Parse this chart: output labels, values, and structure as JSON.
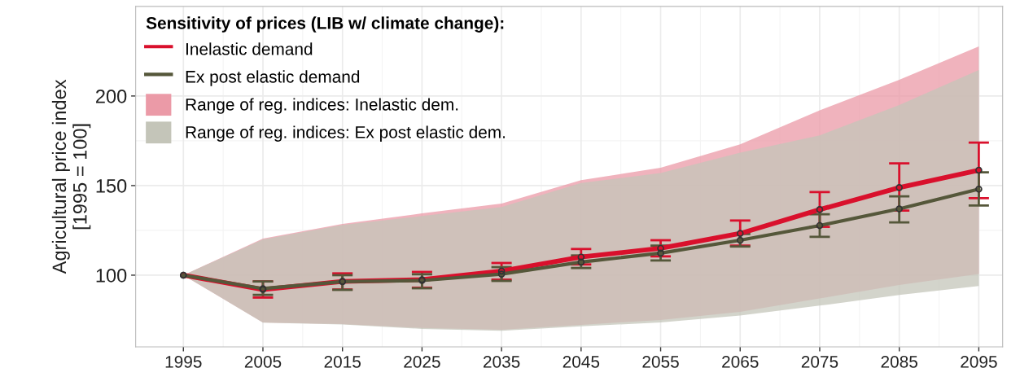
{
  "chart_data": {
    "type": "line",
    "ylabel": "Agricultural price index\n[1995 = 100]",
    "legend_title": "Sensitivity of prices (LIB w/ climate change):",
    "x": [
      1995,
      2005,
      2015,
      2025,
      2035,
      2045,
      2055,
      2065,
      2075,
      2085,
      2095
    ],
    "xlim": [
      1989,
      2098
    ],
    "xticks": [
      1995,
      2005,
      2015,
      2025,
      2035,
      2045,
      2055,
      2065,
      2075,
      2085,
      2095
    ],
    "ylim": [
      60,
      250
    ],
    "yticks": [
      100,
      150,
      200
    ],
    "grid": true,
    "legend": "top left",
    "line_style": "solid",
    "series": [
      {
        "name": "Inelastic demand",
        "marker": "circle",
        "color": "#d9102c",
        "values": [
          100,
          92,
          96.5,
          97.5,
          102.3,
          110.1,
          115,
          123.3,
          136.6,
          148.9,
          158.6
        ],
        "errors": [
          null,
          [
            87.5,
            96.5
          ],
          [
            92,
            101
          ],
          [
            93,
            101.8
          ],
          [
            97.5,
            106.8
          ],
          [
            106,
            114.6
          ],
          [
            110.5,
            119.5
          ],
          [
            116.5,
            130.5
          ],
          [
            127,
            146.4
          ],
          [
            136,
            162.4
          ],
          [
            143,
            174
          ]
        ],
        "upper": [
          100,
          120.4,
          128.6,
          134.5,
          140,
          153,
          160,
          173,
          192,
          209,
          227.7
        ],
        "lower": [
          100,
          73.6,
          72.7,
          70.5,
          69.5,
          72.3,
          75,
          79.5,
          87,
          94.5,
          100.6
        ]
      },
      {
        "name": "Ex post elastic demand",
        "marker": "circle",
        "color": "#55573a",
        "values": [
          100,
          92.5,
          96.4,
          97,
          100.6,
          107.3,
          112.3,
          119.5,
          127.7,
          137,
          148
        ],
        "errors": [
          null,
          [
            89,
            96.5
          ],
          [
            91.8,
            100
          ],
          [
            92.7,
            100.5
          ],
          [
            96.8,
            104.5
          ],
          [
            104,
            111
          ],
          [
            108.2,
            116.5
          ],
          [
            116,
            123
          ],
          [
            121.4,
            134
          ],
          [
            129.5,
            144
          ],
          [
            138.9,
            157.4
          ]
        ],
        "upper": [
          100,
          120,
          128,
          133,
          138,
          151.4,
          157,
          168.4,
          178,
          195,
          214.5
        ],
        "lower": [
          100,
          73.5,
          72.5,
          70,
          69,
          71.5,
          73.6,
          77.5,
          83,
          88.9,
          94
        ]
      },
      {
        "name": "Range of reg. indices: Inelastic dem.",
        "type": "area",
        "color": "#eb9aa7",
        "values": [
          null,
          null,
          null,
          null,
          null,
          null,
          null,
          null,
          null,
          null,
          null
        ]
      },
      {
        "name": "Range of reg. indices: Ex post elastic dem.",
        "type": "area",
        "color": "#c4c5b9",
        "values": [
          null,
          null,
          null,
          null,
          null,
          null,
          null,
          null,
          null,
          null,
          null
        ]
      }
    ]
  }
}
